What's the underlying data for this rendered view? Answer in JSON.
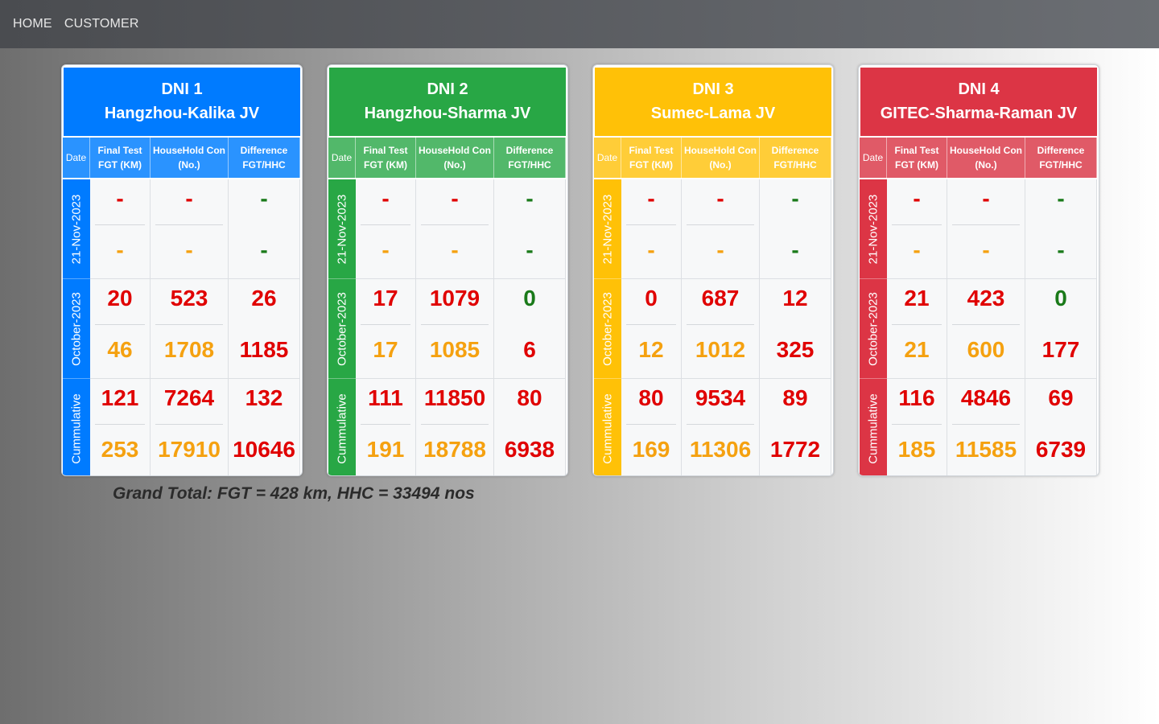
{
  "nav": {
    "home": "HOME",
    "customer": "CUSTOMER"
  },
  "columns": {
    "date": "Date",
    "fgt_l1": "Final Test",
    "fgt_l2": "FGT (KM)",
    "hhc_l1": "HouseHold Con",
    "hhc_l2": "(No.)",
    "diff_l1": "Difference",
    "diff_l2": "FGT/HHC"
  },
  "rows": [
    "21-Nov-2023",
    "October-2023",
    "Cummulative"
  ],
  "cards": [
    {
      "title": "DNI 1",
      "subtitle": "Hangzhou-Kalika JV",
      "head_color": "#007bff",
      "sub_color": "#2a93ff",
      "label_color": "#007bff",
      "values": [
        [
          [
            "-",
            "-"
          ],
          [
            "-",
            "-"
          ],
          [
            "-",
            "-"
          ]
        ],
        [
          [
            "20",
            "46"
          ],
          [
            "523",
            "1708"
          ],
          [
            "26",
            "1185"
          ]
        ],
        [
          [
            "121",
            "253"
          ],
          [
            "7264",
            "17910"
          ],
          [
            "132",
            "10646"
          ]
        ]
      ],
      "diff_colors": [
        "green",
        "red",
        "red"
      ]
    },
    {
      "title": "DNI 2",
      "subtitle": "Hangzhou-Sharma JV",
      "head_color": "#28a745",
      "sub_color": "#52b86a",
      "label_color": "#28a745",
      "values": [
        [
          [
            "-",
            "-"
          ],
          [
            "-",
            "-"
          ],
          [
            "-",
            "-"
          ]
        ],
        [
          [
            "17",
            "17"
          ],
          [
            "1079",
            "1085"
          ],
          [
            "0",
            "6"
          ]
        ],
        [
          [
            "111",
            "191"
          ],
          [
            "11850",
            "18788"
          ],
          [
            "80",
            "6938"
          ]
        ]
      ],
      "diff_colors": [
        "green",
        "green_red",
        "red"
      ]
    },
    {
      "title": "DNI 3",
      "subtitle": "Sumec-Lama JV",
      "head_color": "#ffc107",
      "sub_color": "#ffcd38",
      "label_color": "#ffc107",
      "values": [
        [
          [
            "-",
            "-"
          ],
          [
            "-",
            "-"
          ],
          [
            "-",
            "-"
          ]
        ],
        [
          [
            "0",
            "12"
          ],
          [
            "687",
            "1012"
          ],
          [
            "12",
            "325"
          ]
        ],
        [
          [
            "80",
            "169"
          ],
          [
            "9534",
            "11306"
          ],
          [
            "89",
            "1772"
          ]
        ]
      ],
      "diff_colors": [
        "green",
        "red",
        "red"
      ]
    },
    {
      "title": "DNI 4",
      "subtitle": "GITEC-Sharma-Raman JV",
      "head_color": "#dc3545",
      "sub_color": "#e05a67",
      "label_color": "#dc3545",
      "values": [
        [
          [
            "-",
            "-"
          ],
          [
            "-",
            "-"
          ],
          [
            "-",
            "-"
          ]
        ],
        [
          [
            "21",
            "21"
          ],
          [
            "423",
            "600"
          ],
          [
            "0",
            "177"
          ]
        ],
        [
          [
            "116",
            "185"
          ],
          [
            "4846",
            "11585"
          ],
          [
            "69",
            "6739"
          ]
        ]
      ],
      "diff_colors": [
        "green",
        "green_red",
        "red"
      ]
    }
  ],
  "grand_total": "Grand Total: FGT = 428 km, HHC = 33494 nos"
}
